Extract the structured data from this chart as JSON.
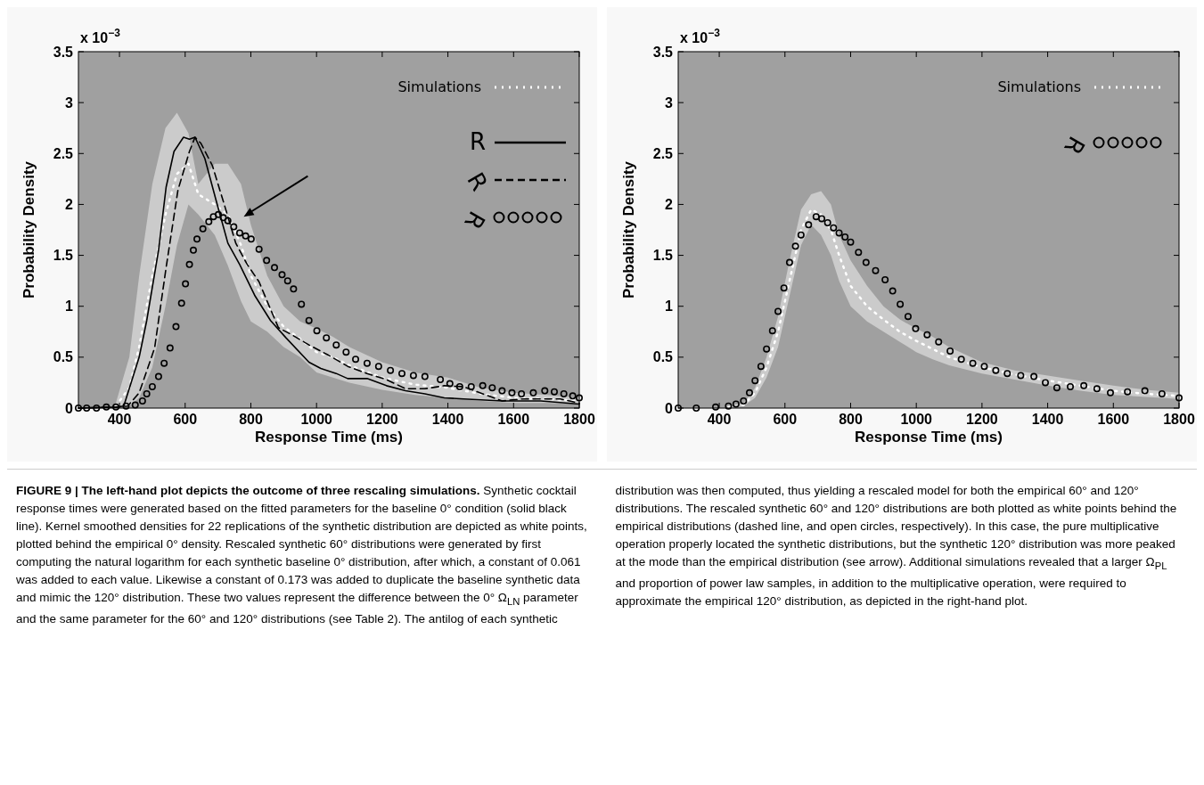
{
  "chart_data": [
    {
      "type": "line",
      "xlabel": "Response Time (ms)",
      "ylabel": "Probability Density",
      "xlim": [
        275,
        1800
      ],
      "xticks": [
        400,
        600,
        800,
        1000,
        1200,
        1400,
        1600,
        1800
      ],
      "ylim": [
        0,
        3.5
      ],
      "yticks": [
        0,
        0.5,
        1,
        1.5,
        2,
        2.5,
        3,
        3.5
      ],
      "legend": "top right",
      "annotations": [
        "x 10$^{−3}$",
        "FIGURE 9 | The left-hand plot depicts the outcome of three rescaling simulations.",
        "Synthetic cocktail response times were generated based on the fitted parameters for the baseline 0° condition (solid black line). Kernel smoothed densities for 22 replications of the synthetic distribution are depicted as white points, plotted behind the empirical 0° density. Rescaled synthetic 60° distributions were generated by first computing the natural logarithm for each synthetic baseline 0° distribution, after which, a constant of 0.061 was added to each value. Likewise a constant of 0.173 was added to duplicate the baseline synthetic data and mimic the 120° distribution. These two values represent the difference between the 0° Ω$_{LN}$ parameter and the same parameter for the 60° and 120° distributions (see Table 2). The antilog of each synthetic distribution was then computed, thus yielding a rescaled model for both the empirical 60° and 120° distributions. The rescaled synthetic 60° and 120° distributions are both plotted as white points behind the empirical distributions (dashed line, and open circles, respectively). In this case, the pure multiplicative operation properly located the synthetic distributions, but the synthetic 120° distribution was more peaked at the mode than the empirical distribution (see arrow). Additional simulations revealed that a larger Ω$_{PL}$ and proportion of power law samples, in addition to the multiplicative operation, were required to approximate the empirical 120° distribution, as depicted in the right-hand plot."
      ],
      "series": [
        {
          "name": "Simulations",
          "color": "#ffffff",
          "line_style": "dotted",
          "x": [
            389,
            430,
            460,
            500,
            540,
            575,
            610,
            640,
            690,
            730,
            770,
            800,
            850,
            900,
            950,
            1000,
            1050,
            1100,
            1200,
            1300,
            1400,
            1500,
            1600,
            1700,
            1800
          ],
          "values": [
            0.02,
            0.2,
            0.6,
            1.3,
            1.9,
            2.3,
            2.4,
            2.1,
            2.0,
            1.9,
            1.6,
            1.3,
            1.0,
            0.8,
            0.68,
            0.55,
            0.5,
            0.42,
            0.3,
            0.23,
            0.2,
            0.14,
            0.1,
            0.09,
            0.07
          ],
          "lower": [
            0,
            0.02,
            0.1,
            0.4,
            1.0,
            1.6,
            2.0,
            1.9,
            1.7,
            1.4,
            1.05,
            0.85,
            0.75,
            0.6,
            0.5,
            0.35,
            0.3,
            0.25,
            0.18,
            0.13,
            0.1,
            0.07,
            0.05,
            0.05,
            0.04
          ],
          "upper": [
            0.05,
            0.5,
            1.3,
            2.2,
            2.75,
            2.9,
            2.7,
            2.2,
            2.4,
            2.4,
            2.2,
            1.8,
            1.3,
            1.0,
            0.85,
            0.78,
            0.7,
            0.6,
            0.45,
            0.35,
            0.3,
            0.2,
            0.15,
            0.13,
            0.1
          ]
        },
        {
          "name": "R",
          "color": "#000000",
          "line_style": "solid",
          "x": [
            275,
            389,
            413,
            460,
            483,
            519,
            542,
            566,
            595,
            613,
            630,
            660,
            695,
            730,
            766,
            813,
            860,
            907,
            977,
            1013,
            1060,
            1095,
            1154,
            1213,
            1271,
            1330,
            1389,
            1448,
            1565,
            1683,
            1800
          ],
          "values": [
            0,
            0.01,
            0.02,
            0.5,
            0.86,
            1.55,
            2.17,
            2.52,
            2.66,
            2.64,
            2.66,
            2.45,
            2.03,
            1.62,
            1.41,
            1.1,
            0.86,
            0.69,
            0.45,
            0.39,
            0.34,
            0.29,
            0.29,
            0.22,
            0.17,
            0.14,
            0.1,
            0.09,
            0.07,
            0.07,
            0.04
          ]
        },
        {
          "name": "R",
          "color": "#000000",
          "line_style": "dashed",
          "x": [
            275,
            389,
            425,
            460,
            507,
            542,
            578,
            613,
            630,
            648,
            683,
            719,
            754,
            789,
            825,
            860,
            884,
            930,
            977,
            1036,
            1095,
            1154,
            1213,
            1271,
            1330,
            1389,
            1448,
            1506,
            1565,
            1624,
            1683,
            1742,
            1800
          ],
          "values": [
            0,
            0.01,
            0.02,
            0.15,
            0.59,
            1.38,
            2.14,
            2.52,
            2.66,
            2.6,
            2.38,
            2.0,
            1.62,
            1.41,
            1.24,
            0.97,
            0.79,
            0.71,
            0.62,
            0.52,
            0.41,
            0.34,
            0.28,
            0.19,
            0.19,
            0.22,
            0.21,
            0.14,
            0.07,
            0.09,
            0.09,
            0.09,
            0.05
          ]
        },
        {
          "name": "R",
          "type": "scatter",
          "color": "#000000",
          "marker": "circle",
          "x": [
            275,
            300,
            330,
            360,
            389,
            420,
            448,
            470,
            483,
            500,
            519,
            536,
            554,
            572,
            589,
            601,
            613,
            625,
            636,
            654,
            672,
            686,
            701,
            716,
            730,
            748,
            766,
            784,
            801,
            825,
            848,
            872,
            895,
            912,
            930,
            954,
            977,
            1001,
            1030,
            1060,
            1090,
            1119,
            1154,
            1189,
            1225,
            1260,
            1295,
            1330,
            1377,
            1406,
            1436,
            1471,
            1506,
            1535,
            1565,
            1595,
            1624,
            1660,
            1695,
            1724,
            1753,
            1780,
            1800
          ],
          "values": [
            0,
            0,
            0,
            0.01,
            0.01,
            0.02,
            0.03,
            0.07,
            0.14,
            0.21,
            0.31,
            0.44,
            0.59,
            0.8,
            1.03,
            1.22,
            1.41,
            1.55,
            1.66,
            1.76,
            1.83,
            1.88,
            1.9,
            1.87,
            1.84,
            1.78,
            1.72,
            1.69,
            1.66,
            1.56,
            1.45,
            1.38,
            1.31,
            1.25,
            1.17,
            1.02,
            0.86,
            0.76,
            0.69,
            0.62,
            0.55,
            0.48,
            0.44,
            0.41,
            0.37,
            0.34,
            0.32,
            0.31,
            0.28,
            0.24,
            0.21,
            0.21,
            0.22,
            0.2,
            0.17,
            0.15,
            0.14,
            0.15,
            0.17,
            0.16,
            0.14,
            0.12,
            0.1
          ]
        }
      ]
    },
    {
      "type": "line",
      "xlabel": "Response Time (ms)",
      "ylabel": "Probability Density",
      "xlim": [
        275,
        1800
      ],
      "xticks": [
        400,
        600,
        800,
        1000,
        1200,
        1400,
        1600,
        1800
      ],
      "ylim": [
        0,
        3.5
      ],
      "yticks": [
        0,
        0.5,
        1,
        1.5,
        2,
        2.5,
        3,
        3.5
      ],
      "legend": "top right",
      "annotations": [
        "x 10$^{−3}$"
      ],
      "series": [
        {
          "name": "Simulations",
          "color": "#ffffff",
          "line_style": "dotted",
          "x": [
            428,
            474,
            509,
            544,
            579,
            614,
            649,
            680,
            710,
            740,
            765,
            800,
            850,
            900,
            950,
            1000,
            1050,
            1100,
            1200,
            1300,
            1400,
            1500,
            1600,
            1700,
            1800
          ],
          "values": [
            0.01,
            0.03,
            0.15,
            0.4,
            0.75,
            1.25,
            1.75,
            1.95,
            1.9,
            1.75,
            1.5,
            1.2,
            1.0,
            0.87,
            0.75,
            0.66,
            0.58,
            0.5,
            0.4,
            0.33,
            0.27,
            0.22,
            0.17,
            0.14,
            0.12
          ],
          "lower": [
            0,
            0.02,
            0.1,
            0.3,
            0.6,
            1.1,
            1.6,
            1.8,
            1.7,
            1.5,
            1.25,
            1.0,
            0.85,
            0.75,
            0.65,
            0.55,
            0.48,
            0.42,
            0.34,
            0.28,
            0.22,
            0.17,
            0.13,
            0.11,
            0.09
          ],
          "upper": [
            0.01,
            0.05,
            0.2,
            0.5,
            0.9,
            1.45,
            1.95,
            2.1,
            2.13,
            2.0,
            1.7,
            1.45,
            1.2,
            1.0,
            0.87,
            0.78,
            0.7,
            0.6,
            0.45,
            0.37,
            0.32,
            0.27,
            0.22,
            0.18,
            0.15
          ]
        },
        {
          "name": "R",
          "type": "scatter",
          "color": "#000000",
          "marker": "circle",
          "x": [
            275,
            330,
            389,
            428,
            451,
            474,
            492,
            509,
            527,
            544,
            562,
            579,
            597,
            614,
            632,
            649,
            672,
            695,
            712,
            730,
            748,
            765,
            783,
            800,
            824,
            847,
            876,
            905,
            928,
            951,
            975,
            998,
            1033,
            1068,
            1103,
            1137,
            1172,
            1207,
            1242,
            1277,
            1318,
            1358,
            1393,
            1428,
            1469,
            1510,
            1550,
            1591,
            1643,
            1696,
            1748,
            1800
          ],
          "values": [
            0,
            0,
            0.01,
            0.02,
            0.04,
            0.07,
            0.15,
            0.27,
            0.41,
            0.58,
            0.76,
            0.95,
            1.18,
            1.43,
            1.59,
            1.7,
            1.8,
            1.88,
            1.86,
            1.82,
            1.77,
            1.72,
            1.68,
            1.63,
            1.53,
            1.43,
            1.35,
            1.26,
            1.15,
            1.02,
            0.9,
            0.78,
            0.72,
            0.65,
            0.56,
            0.48,
            0.44,
            0.41,
            0.37,
            0.34,
            0.32,
            0.31,
            0.25,
            0.2,
            0.21,
            0.22,
            0.19,
            0.15,
            0.16,
            0.17,
            0.14,
            0.1
          ]
        }
      ]
    }
  ]
}
